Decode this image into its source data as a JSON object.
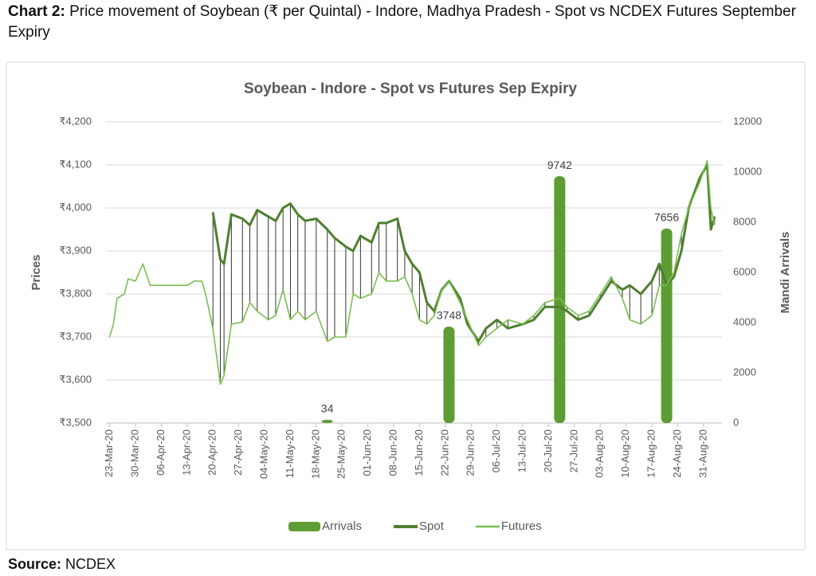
{
  "header": {
    "label": "Chart 2:",
    "text": "Price movement of Soybean (₹ per Quintal) - Indore, Madhya Pradesh - Spot vs NCDEX Futures September Expiry"
  },
  "source": {
    "label": "Source:",
    "text": "NCDEX"
  },
  "chart_data": {
    "type": "combo",
    "title": "Soybean - Indore - Spot vs Futures Sep Expiry",
    "y_label": "Prices",
    "y2_label": "Mandi Arrivals",
    "x": [
      "23-Mar-20",
      "24-Mar-20",
      "25-Mar-20",
      "27-Mar-20",
      "28-Mar-20",
      "30-Mar-20",
      "01-Apr-20",
      "03-Apr-20",
      "13-Apr-20",
      "15-Apr-20",
      "17-Apr-20",
      "18-Apr-20",
      "20-Apr-20",
      "22-Apr-20",
      "23-Apr-20",
      "25-Apr-20",
      "28-Apr-20",
      "30-Apr-20",
      "02-May-20",
      "05-May-20",
      "07-May-20",
      "09-May-20",
      "11-May-20",
      "13-May-20",
      "15-May-20",
      "18-May-20",
      "21-May-20",
      "23-May-20",
      "26-May-20",
      "28-May-20",
      "30-May-20",
      "02-Jun-20",
      "04-Jun-20",
      "06-Jun-20",
      "09-Jun-20",
      "11-Jun-20",
      "13-Jun-20",
      "15-Jun-20",
      "17-Jun-20",
      "19-Jun-20",
      "21-Jun-20",
      "23-Jun-20",
      "26-Jun-20",
      "28-Jun-20",
      "01-Jul-20",
      "03-Jul-20",
      "06-Jul-20",
      "09-Jul-20",
      "13-Jul-20",
      "16-Jul-20",
      "19-Jul-20",
      "23-Jul-20",
      "25-Jul-20",
      "28-Jul-20",
      "31-Jul-20",
      "03-Aug-20",
      "06-Aug-20",
      "09-Aug-20",
      "11-Aug-20",
      "14-Aug-20",
      "17-Aug-20",
      "19-Aug-20",
      "21-Aug-20",
      "23-Aug-20",
      "25-Aug-20",
      "27-Aug-20",
      "30-Aug-20",
      "01-Sep-20",
      "02-Sep-20",
      "03-Sep-20"
    ],
    "series": [
      {
        "name": "Arrivals",
        "kind": "bar",
        "axis": "y2",
        "color": "#5e9c34",
        "values": [
          null,
          null,
          null,
          null,
          null,
          null,
          null,
          null,
          null,
          null,
          null,
          null,
          null,
          null,
          null,
          null,
          null,
          null,
          null,
          null,
          null,
          null,
          null,
          null,
          null,
          null,
          34,
          null,
          null,
          null,
          null,
          null,
          null,
          null,
          null,
          null,
          null,
          null,
          null,
          null,
          null,
          3748,
          null,
          null,
          null,
          null,
          null,
          null,
          null,
          null,
          null,
          9742,
          null,
          null,
          null,
          null,
          null,
          null,
          null,
          null,
          null,
          null,
          7656,
          null,
          null,
          null,
          null,
          null,
          null,
          null
        ]
      },
      {
        "name": "Spot",
        "kind": "line",
        "color": "#4f7f2e",
        "width": 3,
        "values": [
          null,
          null,
          null,
          null,
          null,
          null,
          null,
          null,
          null,
          null,
          null,
          null,
          3990,
          3880,
          3870,
          3985,
          3975,
          3960,
          3995,
          3980,
          3970,
          4000,
          4010,
          3985,
          3970,
          3975,
          3950,
          3930,
          3910,
          3900,
          3935,
          3920,
          3965,
          3965,
          3975,
          3900,
          3870,
          3850,
          3780,
          3760,
          3810,
          3830,
          3790,
          3730,
          3690,
          3720,
          3740,
          3720,
          3730,
          3740,
          3770,
          3770,
          3760,
          3740,
          3750,
          3790,
          3830,
          3810,
          3820,
          3800,
          3830,
          3870,
          3820,
          3840,
          3900,
          4000,
          4070,
          4100,
          3950,
          3980
        ]
      },
      {
        "name": "Futures",
        "kind": "line",
        "color": "#7cbd52",
        "width": 1.6,
        "values": [
          3700,
          3730,
          3790,
          3800,
          3835,
          3830,
          3870,
          3820,
          3820,
          3830,
          3830,
          3800,
          3720,
          3590,
          3610,
          3730,
          3735,
          3780,
          3760,
          3740,
          3750,
          3810,
          3740,
          3760,
          3740,
          3760,
          3690,
          3700,
          3700,
          3800,
          3790,
          3800,
          3850,
          3830,
          3830,
          3840,
          3800,
          3740,
          3730,
          3750,
          3810,
          3830,
          3780,
          3740,
          3680,
          3700,
          3720,
          3740,
          3730,
          3750,
          3780,
          3790,
          3770,
          3750,
          3760,
          3800,
          3840,
          3790,
          3740,
          3730,
          3750,
          3820,
          3820,
          3850,
          3940,
          4000,
          4060,
          4110,
          4000,
          3960
        ]
      }
    ],
    "xlim": [
      "22-Mar-20",
      "05-Sep-20"
    ],
    "xticks": [
      "23-Mar-20",
      "30-Mar-20",
      "06-Apr-20",
      "13-Apr-20",
      "20-Apr-20",
      "27-Apr-20",
      "04-May-20",
      "11-May-20",
      "18-May-20",
      "25-May-20",
      "01-Jun-20",
      "08-Jun-20",
      "15-Jun-20",
      "22-Jun-20",
      "29-Jun-20",
      "06-Jul-20",
      "13-Jul-20",
      "20-Jul-20",
      "27-Jul-20",
      "03-Aug-20",
      "10-Aug-20",
      "17-Aug-20",
      "24-Aug-20",
      "31-Aug-20"
    ],
    "ylim": [
      3500,
      4200
    ],
    "yticks": [
      {
        "value": 3500,
        "label": "₹3,500"
      },
      {
        "value": 3600,
        "label": "₹3,600"
      },
      {
        "value": 3700,
        "label": "₹3,700"
      },
      {
        "value": 3800,
        "label": "₹3,800"
      },
      {
        "value": 3900,
        "label": "₹3,900"
      },
      {
        "value": 4000,
        "label": "₹4,000"
      },
      {
        "value": 4100,
        "label": "₹4,100"
      },
      {
        "value": 4200,
        "label": "₹4,200"
      }
    ],
    "y2lim": [
      0,
      12000
    ],
    "y2ticks": [
      0,
      2000,
      4000,
      6000,
      8000,
      10000,
      12000
    ],
    "grid": true,
    "legend": "bottom"
  }
}
